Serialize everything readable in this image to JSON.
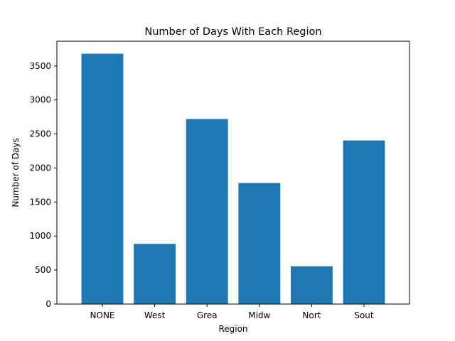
{
  "chart_data": {
    "type": "bar",
    "title": "Number of Days With Each Region",
    "xlabel": "Region",
    "ylabel": "Number of Days",
    "categories": [
      "NONE",
      "West",
      "Grea",
      "Midw",
      "Nort",
      "Sout"
    ],
    "values": [
      3680,
      885,
      2720,
      1780,
      555,
      2405
    ],
    "ylim": [
      0,
      3864
    ],
    "yticks": [
      0,
      500,
      1000,
      1500,
      2000,
      2500,
      3000,
      3500
    ],
    "grid": false,
    "bar_color": "#1f77b4"
  }
}
